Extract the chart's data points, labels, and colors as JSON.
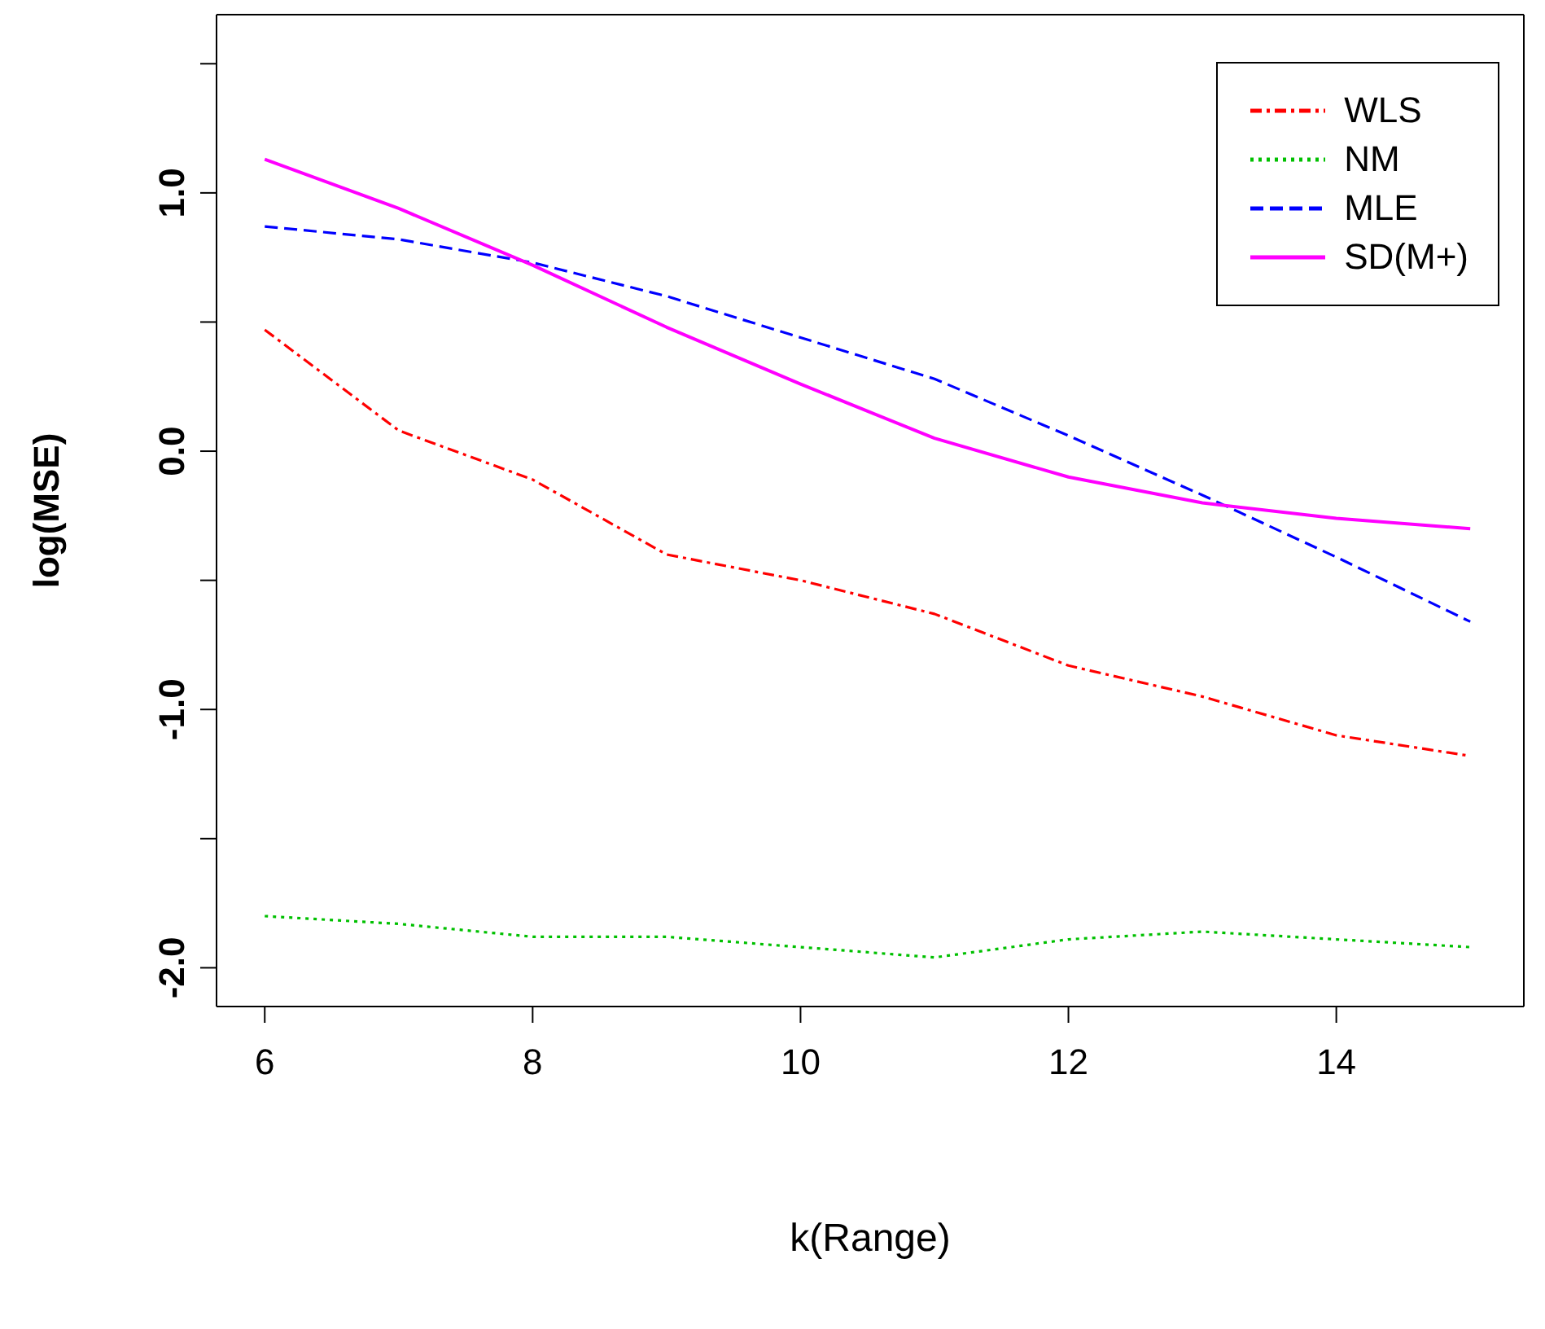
{
  "chart_data": {
    "type": "line",
    "xlabel": "k(Range)",
    "ylabel": "log(MSE)",
    "x": [
      6,
      7,
      8,
      9,
      10,
      11,
      12,
      13,
      14,
      15
    ],
    "series": [
      {
        "name": "WLS",
        "color": "#ff0000",
        "line_style": "dashdot",
        "values": [
          0.47,
          0.08,
          -0.11,
          -0.4,
          -0.5,
          -0.63,
          -0.83,
          -0.95,
          -1.1,
          -1.18
        ]
      },
      {
        "name": "NM",
        "color": "#00c000",
        "line_style": "dotted",
        "values": [
          -1.8,
          -1.83,
          -1.88,
          -1.88,
          -1.92,
          -1.96,
          -1.89,
          -1.86,
          -1.89,
          -1.92
        ]
      },
      {
        "name": "MLE",
        "color": "#0000ff",
        "line_style": "dashed",
        "values": [
          0.87,
          0.82,
          0.73,
          0.6,
          0.44,
          0.28,
          0.06,
          -0.17,
          -0.41,
          -0.66
        ]
      },
      {
        "name": "SD(M+)",
        "color": "#ff00ff",
        "line_style": "solid",
        "values": [
          1.13,
          0.94,
          0.72,
          0.48,
          0.26,
          0.05,
          -0.1,
          -0.2,
          -0.26,
          -0.3
        ]
      }
    ],
    "xlim": [
      5.64,
      15.4
    ],
    "xticks": [
      6,
      8,
      10,
      12,
      14
    ],
    "ylim": [
      -2.15,
      1.69
    ],
    "yticks": [
      {
        "value": -2,
        "label": "-2.0"
      },
      {
        "value": -1.5,
        "label": null
      },
      {
        "value": -1,
        "label": "-1.0"
      },
      {
        "value": -0.5,
        "label": null
      },
      {
        "value": 0,
        "label": "0.0"
      },
      {
        "value": 0.5,
        "label": null
      },
      {
        "value": 1,
        "label": "1.0"
      },
      {
        "value": 1.5,
        "label": null
      }
    ],
    "grid": false,
    "legend": "top right",
    "marker": "none"
  }
}
